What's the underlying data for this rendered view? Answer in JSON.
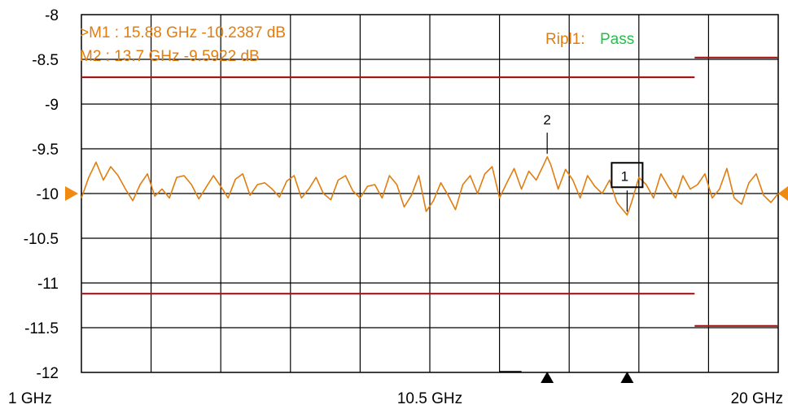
{
  "chart_data": {
    "type": "line",
    "x_unit": "GHz",
    "xlim": [
      1,
      20
    ],
    "ylim": [
      -12,
      -8
    ],
    "yticks": [
      -8,
      -8.5,
      -9,
      -9.5,
      -10,
      -10.5,
      -11,
      -11.5,
      -12
    ],
    "ytick_labels": [
      "-8",
      "-8.5",
      "-9",
      "-9.5",
      "-10",
      "-10.5",
      "-11",
      "-11.5",
      "-12"
    ],
    "xtick_labels": [
      {
        "x": 1,
        "label": "1 GHz"
      },
      {
        "x": 10.5,
        "label": "10.5 GHz"
      },
      {
        "x": 20,
        "label": "20 GHz"
      }
    ],
    "grid": true,
    "reference_level": -10,
    "series": [
      {
        "color": "#e07d10",
        "x": [
          1.0,
          1.2,
          1.4,
          1.6,
          1.8,
          2.0,
          2.2,
          2.4,
          2.6,
          2.8,
          3.0,
          3.2,
          3.4,
          3.6,
          3.8,
          4.0,
          4.2,
          4.4,
          4.6,
          4.8,
          5.0,
          5.2,
          5.4,
          5.6,
          5.8,
          6.0,
          6.2,
          6.4,
          6.6,
          6.8,
          7.0,
          7.2,
          7.4,
          7.6,
          7.8,
          8.0,
          8.2,
          8.4,
          8.6,
          8.8,
          9.0,
          9.2,
          9.4,
          9.6,
          9.8,
          10.0,
          10.2,
          10.4,
          10.6,
          10.8,
          11.0,
          11.2,
          11.4,
          11.6,
          11.8,
          12.0,
          12.2,
          12.4,
          12.6,
          12.8,
          13.0,
          13.2,
          13.4,
          13.6,
          13.7,
          13.8,
          14.0,
          14.2,
          14.4,
          14.6,
          14.8,
          15.0,
          15.2,
          15.4,
          15.6,
          15.8,
          15.88,
          16.0,
          16.2,
          16.4,
          16.6,
          16.8,
          17.0,
          17.2,
          17.4,
          17.6,
          17.8,
          18.0,
          18.2,
          18.4,
          18.6,
          18.8,
          19.0,
          19.2,
          19.4,
          19.6,
          19.8,
          20.0
        ],
        "values": [
          -10.05,
          -9.82,
          -9.65,
          -9.85,
          -9.7,
          -9.8,
          -9.95,
          -10.08,
          -9.9,
          -9.78,
          -10.03,
          -9.95,
          -10.05,
          -9.82,
          -9.8,
          -9.9,
          -10.06,
          -9.93,
          -9.8,
          -9.92,
          -10.05,
          -9.84,
          -9.78,
          -10.02,
          -9.9,
          -9.88,
          -9.95,
          -10.04,
          -9.86,
          -9.8,
          -10.05,
          -9.95,
          -9.82,
          -10.0,
          -10.07,
          -9.85,
          -9.8,
          -9.97,
          -10.05,
          -9.92,
          -9.9,
          -10.05,
          -9.8,
          -9.9,
          -10.15,
          -10.02,
          -9.8,
          -10.2,
          -10.08,
          -9.88,
          -10.02,
          -10.18,
          -9.9,
          -9.8,
          -10.0,
          -9.78,
          -9.7,
          -10.05,
          -9.88,
          -9.72,
          -9.95,
          -9.75,
          -9.85,
          -9.68,
          -9.59,
          -9.68,
          -9.95,
          -9.73,
          -9.85,
          -10.05,
          -9.8,
          -9.92,
          -10.0,
          -9.85,
          -10.1,
          -10.2,
          -10.24,
          -10.1,
          -9.82,
          -9.9,
          -10.05,
          -9.78,
          -9.92,
          -10.05,
          -9.8,
          -9.95,
          -9.9,
          -9.78,
          -10.05,
          -9.95,
          -9.72,
          -10.05,
          -10.12,
          -9.88,
          -9.78,
          -10.02,
          -10.1,
          -10.0
        ]
      }
    ],
    "limit_lines": [
      {
        "x0": 1,
        "x1": 17.72,
        "y": -8.7,
        "color": "#a01818"
      },
      {
        "x0": 1,
        "x1": 17.72,
        "y": -11.12,
        "color": "#a01818"
      },
      {
        "x0": 17.72,
        "x1": 20,
        "y": -8.48,
        "color": "#a01818"
      },
      {
        "x0": 17.72,
        "x1": 20,
        "y": -11.48,
        "color": "#a01818"
      }
    ],
    "markers": [
      {
        "id": "1",
        "x": 15.88,
        "y": -10.2387,
        "label": "1",
        "boxed": true
      },
      {
        "id": "2",
        "x": 13.7,
        "y": -9.5922,
        "label": "2",
        "boxed": false
      }
    ],
    "marker_readouts": [
      {
        "text": ">M1 :  15.88 GHz  -10.2387  dB"
      },
      {
        "text": " M2 :  13.7 GHz  -9.5922  dB"
      }
    ],
    "ripple": {
      "label": "Ripl1:",
      "status": "Pass",
      "label_color": "#e07d10",
      "status_color": "#22c24a"
    },
    "bottom_marker_triangles": [
      13.7,
      15.88
    ]
  }
}
